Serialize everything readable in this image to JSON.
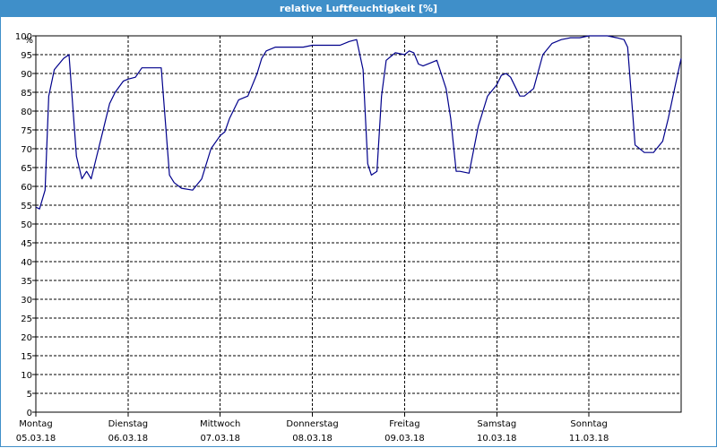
{
  "window": {
    "title": "relative Luftfeuchtigkeit [%]"
  },
  "colors": {
    "title_bar": "#3f8fc9",
    "line": "#00008b",
    "grid": "#000000"
  },
  "chart_data": {
    "type": "line",
    "title": "relative Luftfeuchtigkeit [%]",
    "ylabel": "%",
    "xlabel": "",
    "ylim": [
      0,
      100
    ],
    "yticks": [
      0,
      5,
      10,
      15,
      20,
      25,
      30,
      35,
      40,
      45,
      50,
      55,
      60,
      65,
      70,
      75,
      80,
      85,
      90,
      95,
      100
    ],
    "xlim": [
      0,
      7
    ],
    "grid": true,
    "days": [
      {
        "weekday": "Montag",
        "date": "05.03.18"
      },
      {
        "weekday": "Dienstag",
        "date": "06.03.18"
      },
      {
        "weekday": "Mittwoch",
        "date": "07.03.18"
      },
      {
        "weekday": "Donnerstag",
        "date": "08.03.18"
      },
      {
        "weekday": "Freitag",
        "date": "09.03.18"
      },
      {
        "weekday": "Samstag",
        "date": "10.03.18"
      },
      {
        "weekday": "Sonntag",
        "date": "11.03.18"
      }
    ],
    "series": [
      {
        "x": [
          0.0,
          0.04,
          0.1,
          0.14,
          0.2,
          0.3,
          0.36,
          0.44,
          0.5,
          0.55,
          0.6,
          0.66,
          0.72,
          0.8,
          0.86,
          0.95,
          1.0,
          1.08,
          1.15,
          1.2,
          1.3,
          1.36,
          1.45,
          1.5,
          1.58,
          1.7,
          1.8,
          1.9,
          2.0,
          2.05,
          2.1,
          2.2,
          2.3,
          2.4,
          2.45,
          2.5,
          2.6,
          2.7,
          2.75,
          2.8,
          2.9,
          3.0,
          3.1,
          3.2,
          3.3,
          3.4,
          3.48,
          3.55,
          3.6,
          3.64,
          3.7,
          3.75,
          3.8,
          3.9,
          4.0,
          4.05,
          4.1,
          4.15,
          4.2,
          4.3,
          4.35,
          4.45,
          4.5,
          4.56,
          4.6,
          4.7,
          4.8,
          4.9,
          5.0,
          5.05,
          5.1,
          5.15,
          5.25,
          5.3,
          5.4,
          5.5,
          5.6,
          5.7,
          5.8,
          5.9,
          6.0,
          6.1,
          6.2,
          6.3,
          6.38,
          6.42,
          6.5,
          6.6,
          6.7,
          6.8,
          6.86,
          6.92,
          7.0
        ],
        "y": [
          54.5,
          54,
          59,
          84,
          91,
          94,
          95,
          68,
          62,
          64,
          62,
          68,
          74,
          82,
          85,
          88,
          88.5,
          89,
          91.5,
          91.5,
          91.5,
          91.5,
          63,
          61,
          59.5,
          59,
          62,
          70,
          73.5,
          74.5,
          78,
          83,
          84,
          90,
          94,
          96,
          97,
          97,
          97,
          97,
          97,
          97.5,
          97.5,
          97.5,
          97.5,
          98.5,
          99,
          91,
          66,
          63,
          64,
          84,
          93.5,
          95.5,
          95,
          96,
          95.5,
          92.5,
          92,
          93,
          93.5,
          86,
          78,
          64,
          64,
          63.5,
          76,
          84,
          87,
          89.5,
          90,
          89,
          84,
          84,
          86,
          95,
          98,
          99,
          99.5,
          99.5,
          100,
          100,
          100,
          99.5,
          99,
          97,
          71,
          69,
          69,
          72,
          78,
          85,
          94
        ]
      }
    ]
  }
}
